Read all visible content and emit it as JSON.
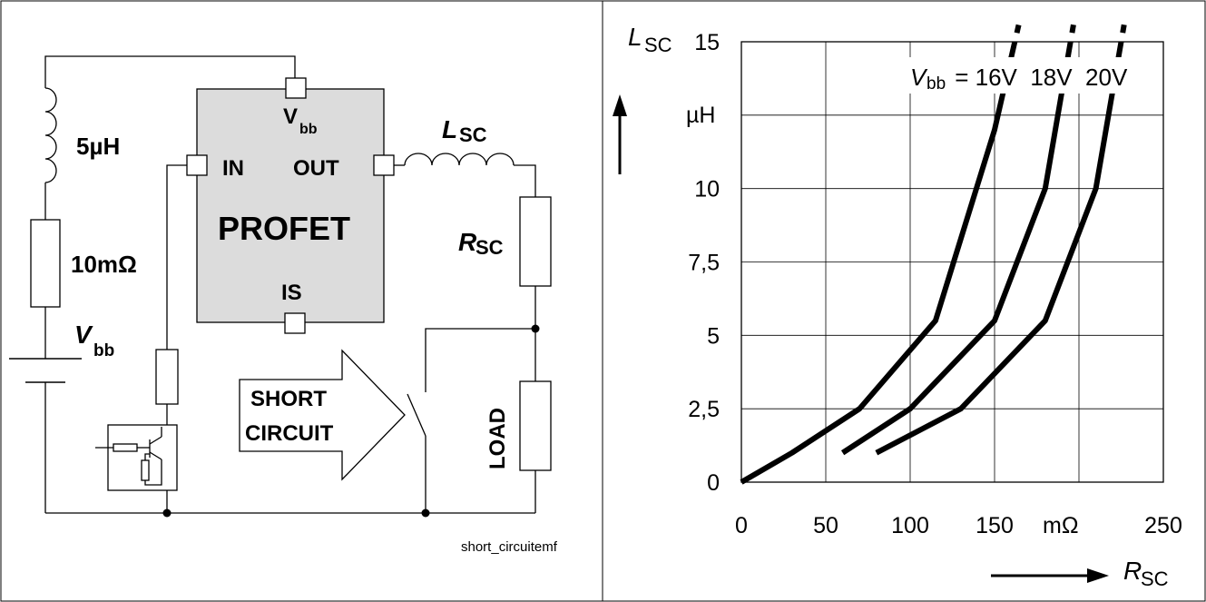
{
  "schematic": {
    "inductor_source": "5µH",
    "resistor_source": "10mΩ",
    "vbb_var": "V",
    "vbb_sub": "bb",
    "ic_name": "PROFET",
    "pin_vbb": "V",
    "pin_vbb_sub": "bb",
    "pin_in": "IN",
    "pin_out": "OUT",
    "pin_is": "IS",
    "lsc_var": "L",
    "lsc_sub": "SC",
    "rsc_var": "R",
    "rsc_sub": "SC",
    "arrow_line1": "SHORT",
    "arrow_line2": "CIRCUIT",
    "load_label": "LOAD",
    "caption": "short_circuitemf"
  },
  "chart_labels": {
    "y_var": "L",
    "y_sub": "SC",
    "y_unit": "µH",
    "x_var": "R",
    "x_sub": "SC",
    "x_unit": "mΩ",
    "legend_var": "V",
    "legend_sub": "bb",
    "legend_rest": " = 16V  18V  20V"
  },
  "chart_data": {
    "type": "line",
    "xlim": [
      0,
      250
    ],
    "ylim": [
      0,
      15
    ],
    "x_ticks": [
      "0",
      "50",
      "100",
      "150",
      "",
      "250"
    ],
    "y_ticks": [
      "0",
      "2,5",
      "5",
      "7,5",
      "10",
      "",
      "15"
    ],
    "grid": true,
    "series": [
      {
        "name": "16V",
        "points": [
          [
            0,
            0
          ],
          [
            30,
            1
          ],
          [
            70,
            2.5
          ],
          [
            115,
            5.5
          ],
          [
            150,
            12
          ],
          [
            162,
            15
          ]
        ]
      },
      {
        "name": "18V",
        "points": [
          [
            60,
            1
          ],
          [
            100,
            2.5
          ],
          [
            150,
            5.5
          ],
          [
            180,
            10
          ],
          [
            195,
            15
          ]
        ]
      },
      {
        "name": "20V",
        "points": [
          [
            80,
            1
          ],
          [
            130,
            2.5
          ],
          [
            180,
            5.5
          ],
          [
            210,
            10
          ],
          [
            225,
            15
          ]
        ]
      }
    ]
  }
}
